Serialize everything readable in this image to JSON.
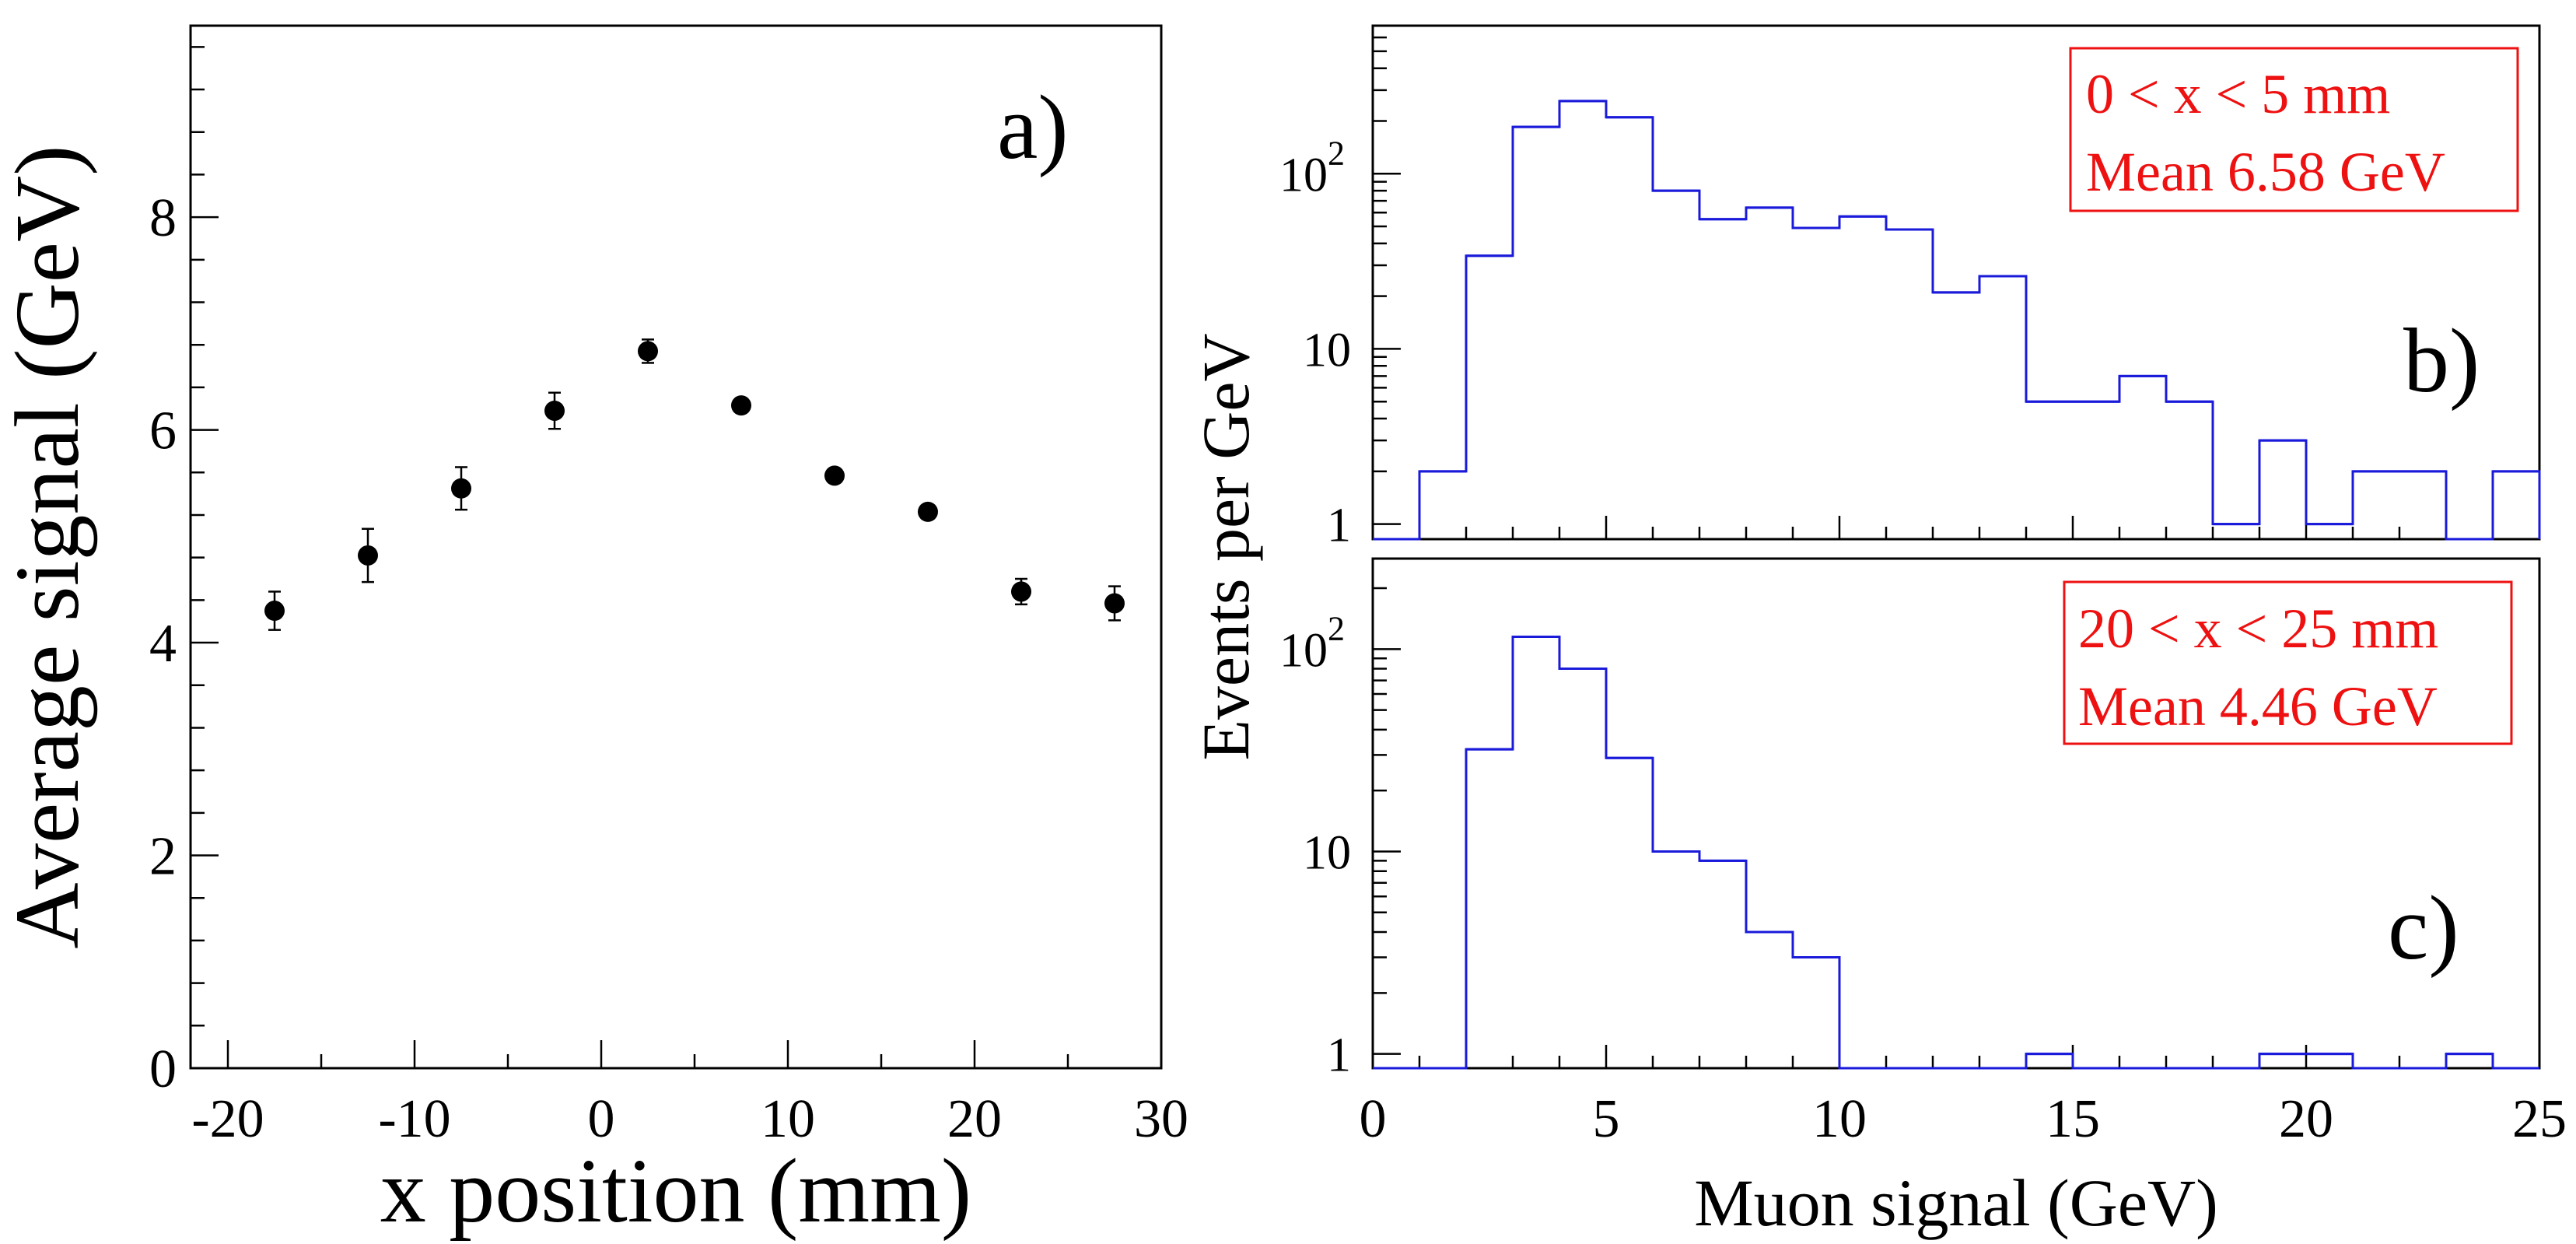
{
  "colors": {
    "axes": "#000000",
    "points": "#000000",
    "histogram": "#1a1adb",
    "info_box": "#ee1111"
  },
  "chart_data": [
    {
      "id": "panel-a",
      "type": "scatter",
      "panel_label": "a)",
      "xlabel": "x position (mm)",
      "ylabel": "Average signal (GeV)",
      "xlim": [
        -22,
        30
      ],
      "ylim": [
        0,
        9.8
      ],
      "x_ticks": [
        -20,
        -10,
        0,
        10,
        20,
        30
      ],
      "x_tick_labels": [
        "-20",
        "-10",
        "0",
        "10",
        "20",
        "30"
      ],
      "x_minor_step": 5,
      "y_ticks": [
        0,
        2,
        4,
        6,
        8
      ],
      "y_tick_labels": [
        "0",
        "2",
        "4",
        "6",
        "8"
      ],
      "y_minor_step": 0.4,
      "points": [
        {
          "x": -17.5,
          "y": 4.3,
          "err": 0.18
        },
        {
          "x": -12.5,
          "y": 4.82,
          "err": 0.25
        },
        {
          "x": -7.5,
          "y": 5.45,
          "err": 0.2
        },
        {
          "x": -2.5,
          "y": 6.18,
          "err": 0.17
        },
        {
          "x": 2.5,
          "y": 6.74,
          "err": 0.11
        },
        {
          "x": 7.5,
          "y": 6.23,
          "err": 0.05
        },
        {
          "x": 12.5,
          "y": 5.57,
          "err": 0.05
        },
        {
          "x": 17.5,
          "y": 5.23,
          "err": 0.05
        },
        {
          "x": 22.5,
          "y": 4.48,
          "err": 0.12
        },
        {
          "x": 27.5,
          "y": 4.37,
          "err": 0.16
        }
      ]
    },
    {
      "id": "panel-b",
      "type": "histogram",
      "panel_label": "b)",
      "xlim": [
        0,
        25
      ],
      "ylim": [
        0.82,
        700
      ],
      "log_y": true,
      "x_ticks": [
        0,
        5,
        10,
        15,
        20,
        25
      ],
      "y_ticks": [
        1,
        10,
        100
      ],
      "y_tick_labels": [
        "1",
        "10",
        "10",
        "2"
      ],
      "info_lines": [
        "0 < x < 5 mm",
        "Mean 6.58 GeV"
      ],
      "bin_width": 1,
      "bins": [
        {
          "x0": 1,
          "v": 2
        },
        {
          "x0": 2,
          "v": 34
        },
        {
          "x0": 3,
          "v": 185
        },
        {
          "x0": 4,
          "v": 260
        },
        {
          "x0": 5,
          "v": 210
        },
        {
          "x0": 6,
          "v": 80
        },
        {
          "x0": 7,
          "v": 55
        },
        {
          "x0": 8,
          "v": 64
        },
        {
          "x0": 9,
          "v": 49
        },
        {
          "x0": 10,
          "v": 57
        },
        {
          "x0": 11,
          "v": 48
        },
        {
          "x0": 12,
          "v": 21
        },
        {
          "x0": 13,
          "v": 26
        },
        {
          "x0": 14,
          "v": 5
        },
        {
          "x0": 15,
          "v": 5
        },
        {
          "x0": 16,
          "v": 7
        },
        {
          "x0": 17,
          "v": 5
        },
        {
          "x0": 18,
          "v": 1
        },
        {
          "x0": 19,
          "v": 3
        },
        {
          "x0": 20,
          "v": 1
        },
        {
          "x0": 21,
          "v": 2
        },
        {
          "x0": 22,
          "v": 2
        },
        {
          "x0": 24,
          "v": 2
        }
      ]
    },
    {
      "id": "panel-c",
      "type": "histogram",
      "panel_label": "c)",
      "xlabel": "Muon signal (GeV)",
      "xlim": [
        0,
        25
      ],
      "ylim": [
        0.85,
        280
      ],
      "log_y": true,
      "x_ticks": [
        0,
        5,
        10,
        15,
        20,
        25
      ],
      "x_tick_labels": [
        "0",
        "5",
        "10",
        "15",
        "20",
        "25"
      ],
      "y_ticks": [
        1,
        10,
        100
      ],
      "y_tick_labels": [
        "1",
        "10",
        "10",
        "2"
      ],
      "info_lines": [
        "20 < x < 25 mm",
        "Mean 4.46 GeV"
      ],
      "bin_width": 1,
      "bins": [
        {
          "x0": 2,
          "v": 32
        },
        {
          "x0": 3,
          "v": 115
        },
        {
          "x0": 4,
          "v": 80
        },
        {
          "x0": 5,
          "v": 29
        },
        {
          "x0": 6,
          "v": 10
        },
        {
          "x0": 7,
          "v": 9
        },
        {
          "x0": 8,
          "v": 4
        },
        {
          "x0": 9,
          "v": 3
        },
        {
          "x0": 14,
          "v": 1
        },
        {
          "x0": 19,
          "v": 1
        },
        {
          "x0": 20,
          "v": 1
        },
        {
          "x0": 23,
          "v": 1
        }
      ]
    }
  ],
  "shared_ylabel": "Events per GeV"
}
